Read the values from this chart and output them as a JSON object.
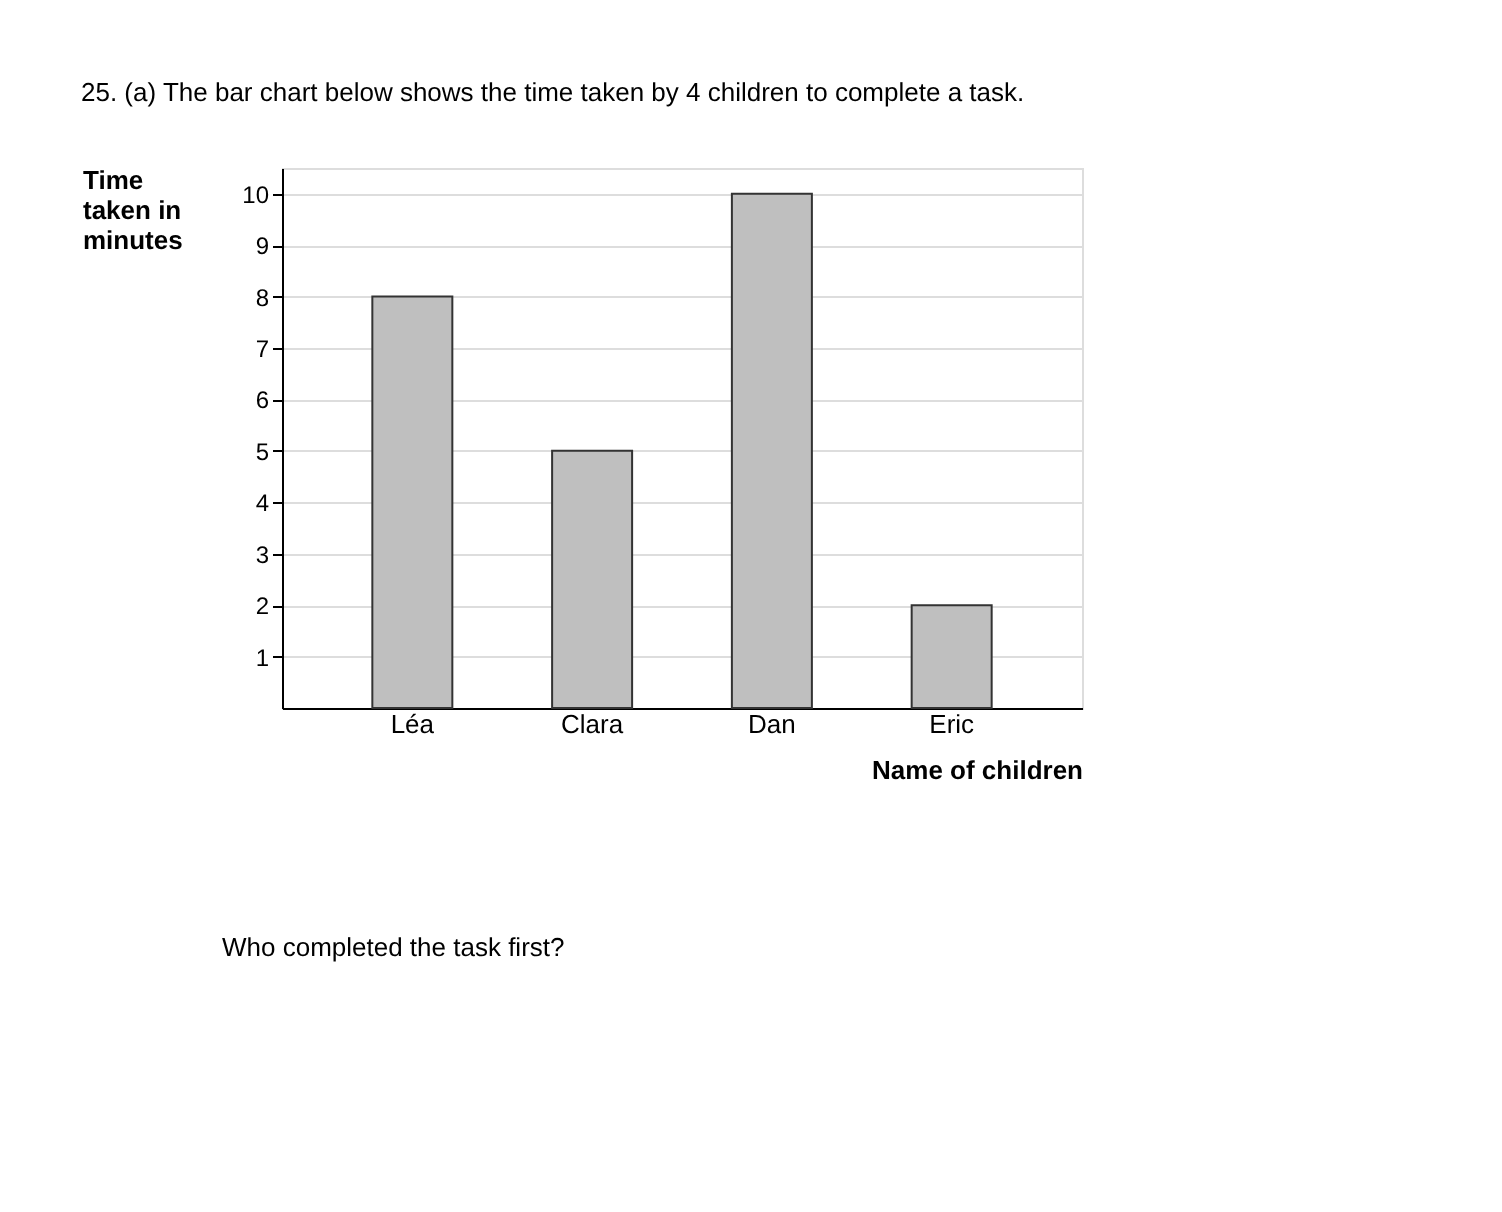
{
  "chart_data": {
    "type": "bar",
    "title": "25.   (a)   The bar chart below shows the time taken by 4 children to complete a task.",
    "ylabel": "Time taken in minutes",
    "xlabel": "Name of children",
    "categories": [
      "Léa",
      "Clara",
      "Dan",
      "Eric"
    ],
    "values": [
      8,
      5,
      10,
      2
    ],
    "color": "#bfbfbf",
    "ylim": [
      0,
      10.5
    ],
    "yticks": [
      1,
      2,
      3,
      4,
      5,
      6,
      7,
      8,
      9,
      10
    ],
    "grid": "y",
    "annotations": [
      "Who completed the task first?"
    ]
  }
}
